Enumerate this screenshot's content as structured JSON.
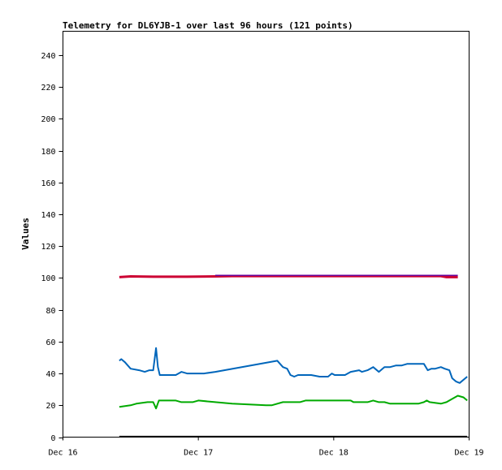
{
  "chart_data": {
    "type": "line",
    "title": "Telemetry for DL6YJB-1 over last 96 hours (121 points)",
    "xlabel": "",
    "ylabel": "Values",
    "ylim": [
      0,
      255
    ],
    "xlim": [
      "2023-12-16T00:00",
      "2023-12-19T00:00"
    ],
    "x_tick_labels": [
      "Dec 16",
      "Dec 17",
      "Dec 18",
      "Dec 19"
    ],
    "y_ticks": [
      0,
      20,
      40,
      60,
      80,
      100,
      120,
      140,
      160,
      180,
      200,
      220,
      240
    ],
    "grid": false,
    "legend": "none",
    "series": [
      {
        "color": "#cc0033",
        "width": 3,
        "points": [
          [
            "2023-12-16T10:00",
            100.5
          ],
          [
            "2023-12-16T12:00",
            101
          ],
          [
            "2023-12-16T16:00",
            100.8
          ],
          [
            "2023-12-16T22:00",
            100.8
          ],
          [
            "2023-12-17T03:00",
            101
          ],
          [
            "2023-12-17T06:00",
            101.2
          ],
          [
            "2023-12-17T12:00",
            101.2
          ],
          [
            "2023-12-18T00:00",
            101.2
          ],
          [
            "2023-12-18T12:00",
            101.2
          ],
          [
            "2023-12-18T19:00",
            101.2
          ],
          [
            "2023-12-18T20:00",
            100.5
          ],
          [
            "2023-12-18T22:00",
            100.5
          ]
        ]
      },
      {
        "color": "#660099",
        "width": 1.5,
        "points": [
          [
            "2023-12-17T03:00",
            101.6
          ],
          [
            "2023-12-17T12:00",
            101.6
          ],
          [
            "2023-12-18T00:00",
            101.6
          ],
          [
            "2023-12-18T12:00",
            101.6
          ],
          [
            "2023-12-18T22:00",
            101.6
          ]
        ]
      },
      {
        "color": "#0066bb",
        "width": 2,
        "points": [
          [
            "2023-12-16T10:00",
            48
          ],
          [
            "2023-12-16T10:20",
            49
          ],
          [
            "2023-12-16T11:00",
            47
          ],
          [
            "2023-12-16T12:00",
            43
          ],
          [
            "2023-12-16T13:30",
            42
          ],
          [
            "2023-12-16T14:30",
            41
          ],
          [
            "2023-12-16T15:20",
            42
          ],
          [
            "2023-12-16T16:00",
            42
          ],
          [
            "2023-12-16T16:30",
            56
          ],
          [
            "2023-12-16T16:50",
            44
          ],
          [
            "2023-12-16T17:10",
            39
          ],
          [
            "2023-12-16T19:00",
            39
          ],
          [
            "2023-12-16T20:00",
            39
          ],
          [
            "2023-12-16T21:00",
            41
          ],
          [
            "2023-12-16T22:00",
            40
          ],
          [
            "2023-12-17T01:00",
            40
          ],
          [
            "2023-12-17T03:00",
            41
          ],
          [
            "2023-12-17T14:00",
            48
          ],
          [
            "2023-12-17T15:00",
            44
          ],
          [
            "2023-12-17T15:45",
            43
          ],
          [
            "2023-12-17T16:20",
            39
          ],
          [
            "2023-12-17T17:00",
            38
          ],
          [
            "2023-12-17T17:40",
            39
          ],
          [
            "2023-12-17T20:00",
            39
          ],
          [
            "2023-12-17T21:30",
            38
          ],
          [
            "2023-12-17T23:00",
            38
          ],
          [
            "2023-12-17T23:40",
            40
          ],
          [
            "2023-12-18T00:10",
            39
          ],
          [
            "2023-12-18T02:00",
            39
          ],
          [
            "2023-12-18T03:00",
            41
          ],
          [
            "2023-12-18T04:30",
            42
          ],
          [
            "2023-12-18T05:00",
            41
          ],
          [
            "2023-12-18T06:00",
            42
          ],
          [
            "2023-12-18T07:00",
            44
          ],
          [
            "2023-12-18T08:00",
            41
          ],
          [
            "2023-12-18T09:00",
            44
          ],
          [
            "2023-12-18T10:00",
            44
          ],
          [
            "2023-12-18T11:00",
            45
          ],
          [
            "2023-12-18T12:00",
            45
          ],
          [
            "2023-12-18T13:00",
            46
          ],
          [
            "2023-12-18T16:00",
            46
          ],
          [
            "2023-12-18T16:40",
            42
          ],
          [
            "2023-12-18T17:20",
            43
          ],
          [
            "2023-12-18T18:00",
            43
          ],
          [
            "2023-12-18T19:00",
            44
          ],
          [
            "2023-12-18T19:40",
            43
          ],
          [
            "2023-12-18T20:30",
            42
          ],
          [
            "2023-12-18T21:00",
            37
          ],
          [
            "2023-12-18T21:40",
            35
          ],
          [
            "2023-12-18T22:20",
            34
          ],
          [
            "2023-12-18T23:40",
            38
          ]
        ]
      },
      {
        "color": "#00aa00",
        "width": 2,
        "points": [
          [
            "2023-12-16T10:00",
            19
          ],
          [
            "2023-12-16T11:00",
            19.5
          ],
          [
            "2023-12-16T12:00",
            20
          ],
          [
            "2023-12-16T13:00",
            21
          ],
          [
            "2023-12-16T15:00",
            22
          ],
          [
            "2023-12-16T16:00",
            22
          ],
          [
            "2023-12-16T16:30",
            18
          ],
          [
            "2023-12-16T17:00",
            23
          ],
          [
            "2023-12-16T20:00",
            23
          ],
          [
            "2023-12-16T21:00",
            22
          ],
          [
            "2023-12-16T23:00",
            22
          ],
          [
            "2023-12-17T00:00",
            23
          ],
          [
            "2023-12-17T03:00",
            22
          ],
          [
            "2023-12-17T06:00",
            21
          ],
          [
            "2023-12-17T12:00",
            20
          ],
          [
            "2023-12-17T13:00",
            20
          ],
          [
            "2023-12-17T15:00",
            22
          ],
          [
            "2023-12-17T18:00",
            22
          ],
          [
            "2023-12-17T19:00",
            23
          ],
          [
            "2023-12-18T00:00",
            23
          ],
          [
            "2023-12-18T03:00",
            23
          ],
          [
            "2023-12-18T03:30",
            22
          ],
          [
            "2023-12-18T06:00",
            22
          ],
          [
            "2023-12-18T07:00",
            23
          ],
          [
            "2023-12-18T08:00",
            22
          ],
          [
            "2023-12-18T09:00",
            22
          ],
          [
            "2023-12-18T10:00",
            21
          ],
          [
            "2023-12-18T15:00",
            21
          ],
          [
            "2023-12-18T16:00",
            22
          ],
          [
            "2023-12-18T16:30",
            23
          ],
          [
            "2023-12-18T17:00",
            22
          ],
          [
            "2023-12-18T19:00",
            21
          ],
          [
            "2023-12-18T20:00",
            22
          ],
          [
            "2023-12-18T21:00",
            24
          ],
          [
            "2023-12-18T22:00",
            26
          ],
          [
            "2023-12-18T23:00",
            25
          ],
          [
            "2023-12-18T23:40",
            23
          ]
        ]
      },
      {
        "color": "#000000",
        "width": 2,
        "points": [
          [
            "2023-12-16T10:00",
            0.3
          ],
          [
            "2023-12-18T23:40",
            0.3
          ]
        ]
      }
    ]
  }
}
